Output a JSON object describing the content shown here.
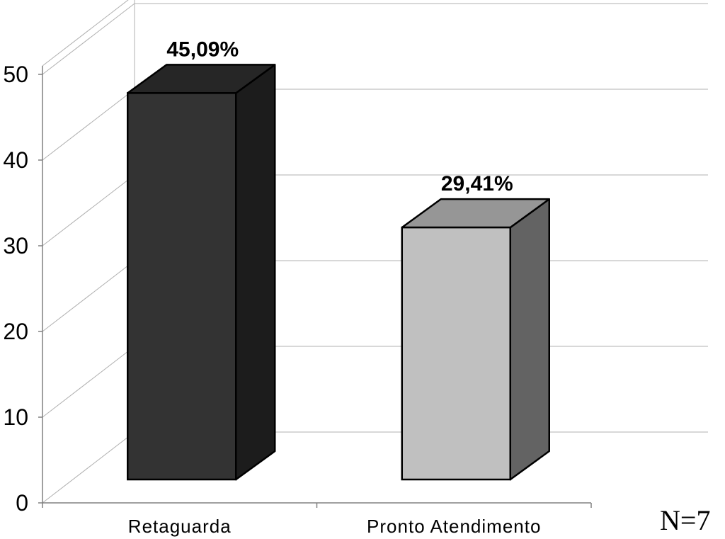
{
  "chart_data": {
    "type": "bar",
    "title": "",
    "xlabel": "",
    "ylabel": "",
    "categories": [
      "Retaguarda",
      "Pronto Atendimento"
    ],
    "values": [
      45.09,
      29.41
    ],
    "value_labels": [
      "45,09%",
      "29,41%"
    ],
    "ylim": [
      0,
      50
    ],
    "yticks": [
      0,
      10,
      20,
      30,
      40,
      50
    ],
    "grid": true,
    "legend": "none",
    "three_d": true,
    "colors": {
      "bars_front": [
        "#333333",
        "#c0c0c0"
      ],
      "bars_top": [
        "#262626",
        "#969696"
      ],
      "bars_side": [
        "#1c1c1c",
        "#636363"
      ],
      "grid": "#b0b0b0",
      "axis": "#808080"
    },
    "annotation": "N=7"
  }
}
